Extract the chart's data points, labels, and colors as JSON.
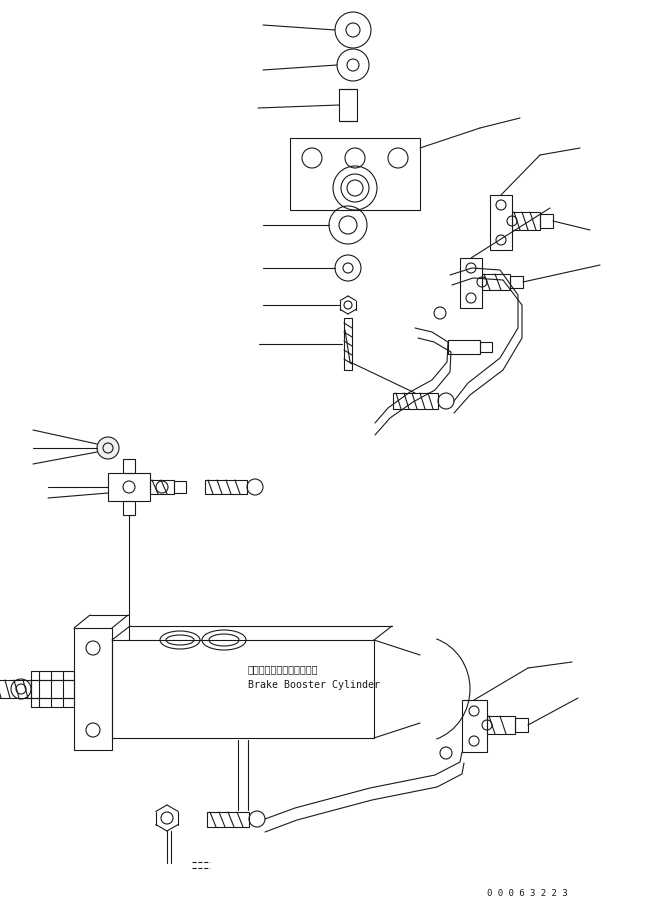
{
  "bg_color": "#ffffff",
  "line_color": "#1a1a1a",
  "part_number_text": "0 0 0 6 3 2 2 3",
  "label_japanese": "ブレーキブースタシリンダ",
  "label_english": "Brake Booster Cylinder",
  "fig_width": 6.47,
  "fig_height": 9.08,
  "dpi": 100,
  "line_width": 0.8
}
